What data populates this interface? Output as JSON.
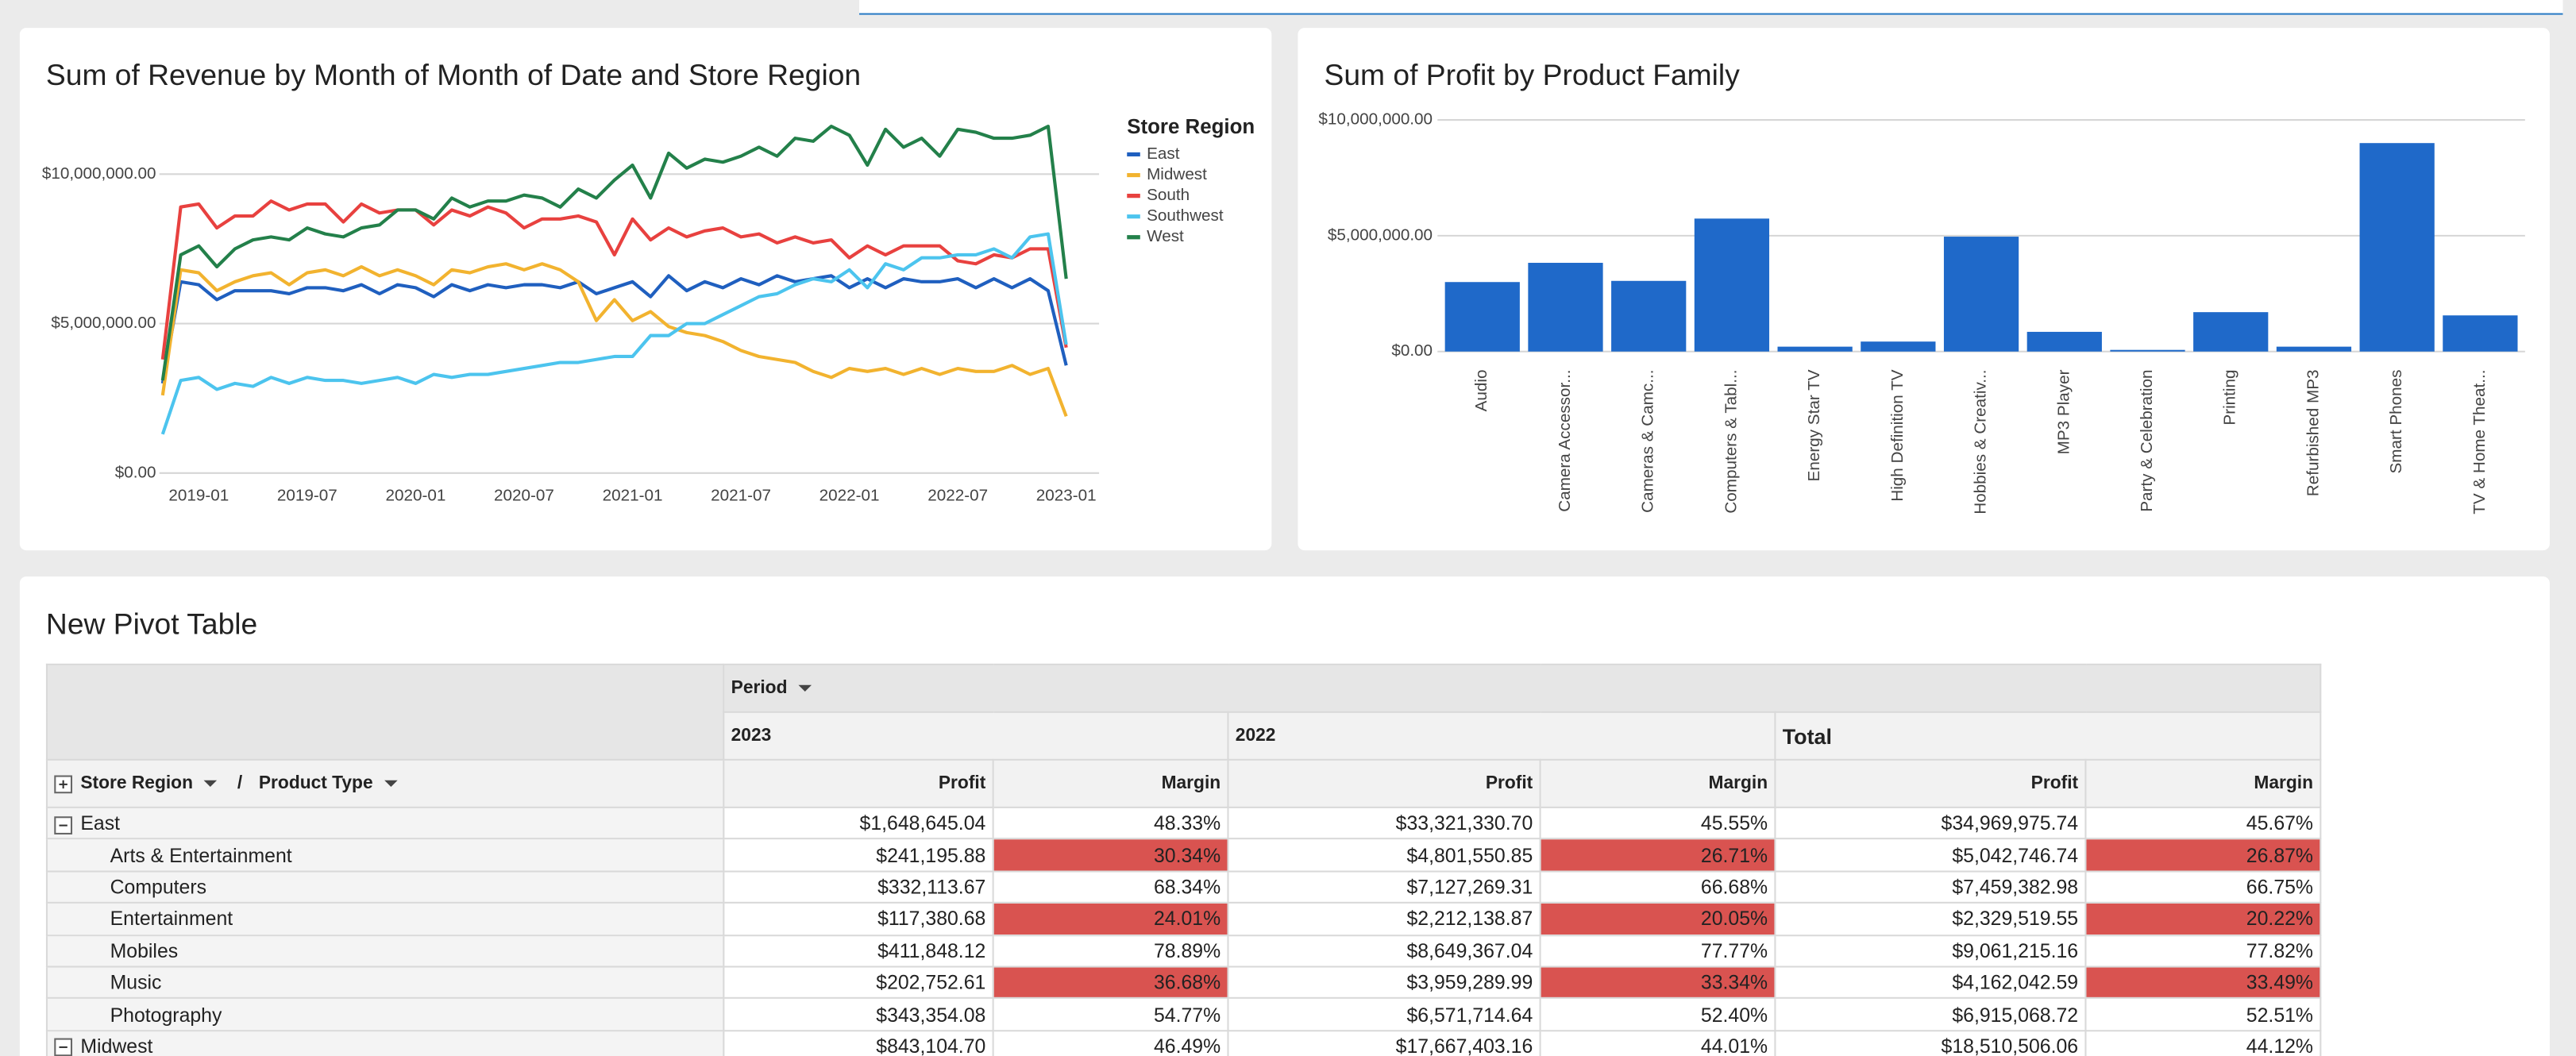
{
  "chart_data": [
    {
      "type": "line",
      "title": "Sum of Revenue by Month of Month of Date and Store Region",
      "x": [
        "2018-11",
        "2018-12",
        "2019-01",
        "2019-02",
        "2019-03",
        "2019-04",
        "2019-05",
        "2019-06",
        "2019-07",
        "2019-08",
        "2019-09",
        "2019-10",
        "2019-11",
        "2019-12",
        "2020-01",
        "2020-02",
        "2020-03",
        "2020-04",
        "2020-05",
        "2020-06",
        "2020-07",
        "2020-08",
        "2020-09",
        "2020-10",
        "2020-11",
        "2020-12",
        "2021-01",
        "2021-02",
        "2021-03",
        "2021-04",
        "2021-05",
        "2021-06",
        "2021-07",
        "2021-08",
        "2021-09",
        "2021-10",
        "2021-11",
        "2021-12",
        "2022-01",
        "2022-02",
        "2022-03",
        "2022-04",
        "2022-05",
        "2022-06",
        "2022-07",
        "2022-08",
        "2022-09",
        "2022-10",
        "2022-11",
        "2022-12",
        "2023-01"
      ],
      "xlim": [
        "2018-11",
        "2023-01"
      ],
      "xticks": [
        "2019-01",
        "2019-07",
        "2020-01",
        "2020-07",
        "2021-01",
        "2021-07",
        "2022-01",
        "2022-07",
        "2023-01"
      ],
      "ylim": [
        0,
        12000000
      ],
      "yticks": [
        {
          "value": 0,
          "label": "$0.00"
        },
        {
          "value": 5000000,
          "label": "$5,000,000.00"
        },
        {
          "value": 10000000,
          "label": "$10,000,000.00"
        }
      ],
      "grid": true,
      "legend": "right",
      "legend_title": "Store Region",
      "series": [
        {
          "name": "East",
          "color": "#1f5fbf",
          "values": [
            3000000,
            6400000,
            6300000,
            5800000,
            6100000,
            6100000,
            6100000,
            6000000,
            6200000,
            6200000,
            6100000,
            6300000,
            6000000,
            6300000,
            6200000,
            5900000,
            6300000,
            6100000,
            6300000,
            6200000,
            6300000,
            6300000,
            6200000,
            6400000,
            6000000,
            6200000,
            6400000,
            5900000,
            6600000,
            6100000,
            6400000,
            6200000,
            6500000,
            6300000,
            6600000,
            6400000,
            6500000,
            6600000,
            6200000,
            6500000,
            6200000,
            6500000,
            6400000,
            6400000,
            6500000,
            6200000,
            6500000,
            6200000,
            6500000,
            6100000,
            3600000
          ]
        },
        {
          "name": "Midwest",
          "color": "#f2b32f",
          "values": [
            2600000,
            6800000,
            6700000,
            6100000,
            6400000,
            6600000,
            6700000,
            6300000,
            6700000,
            6800000,
            6600000,
            6900000,
            6600000,
            6800000,
            6600000,
            6300000,
            6800000,
            6700000,
            6900000,
            7000000,
            6800000,
            7000000,
            6800000,
            6400000,
            5100000,
            5800000,
            5100000,
            5400000,
            4900000,
            4700000,
            4600000,
            4400000,
            4100000,
            3900000,
            3800000,
            3700000,
            3400000,
            3200000,
            3500000,
            3400000,
            3500000,
            3300000,
            3500000,
            3300000,
            3500000,
            3400000,
            3400000,
            3600000,
            3300000,
            3500000,
            1900000
          ]
        },
        {
          "name": "South",
          "color": "#e8413f",
          "values": [
            3800000,
            8900000,
            9000000,
            8200000,
            8600000,
            8600000,
            9100000,
            8800000,
            9000000,
            9000000,
            8400000,
            9000000,
            8700000,
            8800000,
            8800000,
            8300000,
            8800000,
            8600000,
            8900000,
            8700000,
            8200000,
            8500000,
            8500000,
            8600000,
            8400000,
            7300000,
            8500000,
            7800000,
            8200000,
            7900000,
            8100000,
            8200000,
            7900000,
            8000000,
            7700000,
            7900000,
            7700000,
            7800000,
            7200000,
            7600000,
            7300000,
            7600000,
            7600000,
            7600000,
            7100000,
            7000000,
            7300000,
            7200000,
            7500000,
            7500000,
            4200000
          ]
        },
        {
          "name": "Southwest",
          "color": "#4cc4ee",
          "values": [
            1300000,
            3100000,
            3200000,
            2800000,
            3000000,
            2900000,
            3200000,
            3000000,
            3200000,
            3100000,
            3100000,
            3000000,
            3100000,
            3200000,
            3000000,
            3300000,
            3200000,
            3300000,
            3300000,
            3400000,
            3500000,
            3600000,
            3700000,
            3700000,
            3800000,
            3900000,
            3900000,
            4600000,
            4600000,
            5000000,
            5000000,
            5300000,
            5600000,
            5900000,
            6000000,
            6300000,
            6500000,
            6400000,
            6800000,
            6200000,
            7000000,
            6800000,
            7200000,
            7200000,
            7300000,
            7300000,
            7500000,
            7200000,
            7900000,
            8000000,
            4300000
          ]
        },
        {
          "name": "West",
          "color": "#23804a",
          "values": [
            3100000,
            7300000,
            7600000,
            6900000,
            7500000,
            7800000,
            7900000,
            7800000,
            8200000,
            8000000,
            7900000,
            8200000,
            8300000,
            8800000,
            8800000,
            8500000,
            9200000,
            8900000,
            9100000,
            9100000,
            9300000,
            9200000,
            8900000,
            9500000,
            9200000,
            9800000,
            10300000,
            9200000,
            10700000,
            10200000,
            10500000,
            10400000,
            10600000,
            10900000,
            10600000,
            11200000,
            11100000,
            11600000,
            11300000,
            10300000,
            11500000,
            10900000,
            11200000,
            10600000,
            11500000,
            11400000,
            11200000,
            11200000,
            11300000,
            11600000,
            6500000
          ]
        }
      ]
    },
    {
      "type": "bar",
      "title": "Sum of Profit by Product Family",
      "categories": [
        "Audio",
        "Camera Accessor...",
        "Cameras & Camc...",
        "Computers & Tabl...",
        "Energy Star TV",
        "High Definition TV",
        "Hobbies & Creativ...",
        "MP3 Player",
        "Party & Celebration",
        "Printing",
        "Refurbished MP3",
        "Smart Phones",
        "TV & Home Theat..."
      ],
      "values": [
        3000000,
        3830000,
        3050000,
        5740000,
        210000,
        430000,
        4960000,
        850000,
        70000,
        1700000,
        210000,
        9000000,
        1560000
      ],
      "color": "#1f69c9",
      "ylim": [
        0,
        10000000
      ],
      "yticks": [
        {
          "value": 0,
          "label": "$0.00"
        },
        {
          "value": 5000000,
          "label": "$5,000,000.00"
        },
        {
          "value": 10000000,
          "label": "$10,000,000.00"
        }
      ],
      "grid": true
    }
  ],
  "pivot_table": {
    "title": "New Pivot Table",
    "column_field": "Period",
    "row_fields": [
      "Store Region",
      "Product Type"
    ],
    "separator": "/",
    "periods": [
      "2023",
      "2022",
      "Total"
    ],
    "measures": [
      "Profit",
      "Margin"
    ],
    "highlight_color": "#d95350",
    "rows": [
      {
        "label": "East",
        "level": 0,
        "highlight": false,
        "cells": [
          "$1,648,645.04",
          "48.33%",
          "$33,321,330.70",
          "45.55%",
          "$34,969,975.74",
          "45.67%"
        ]
      },
      {
        "label": "Arts & Entertainment",
        "level": 1,
        "highlight": true,
        "cells": [
          "$241,195.88",
          "30.34%",
          "$4,801,550.85",
          "26.71%",
          "$5,042,746.74",
          "26.87%"
        ]
      },
      {
        "label": "Computers",
        "level": 1,
        "highlight": false,
        "cells": [
          "$332,113.67",
          "68.34%",
          "$7,127,269.31",
          "66.68%",
          "$7,459,382.98",
          "66.75%"
        ]
      },
      {
        "label": "Entertainment",
        "level": 1,
        "highlight": true,
        "cells": [
          "$117,380.68",
          "24.01%",
          "$2,212,138.87",
          "20.05%",
          "$2,329,519.55",
          "20.22%"
        ]
      },
      {
        "label": "Mobiles",
        "level": 1,
        "highlight": false,
        "cells": [
          "$411,848.12",
          "78.89%",
          "$8,649,367.04",
          "77.77%",
          "$9,061,215.16",
          "77.82%"
        ]
      },
      {
        "label": "Music",
        "level": 1,
        "highlight": true,
        "cells": [
          "$202,752.61",
          "36.68%",
          "$3,959,289.99",
          "33.34%",
          "$4,162,042.59",
          "33.49%"
        ]
      },
      {
        "label": "Photography",
        "level": 1,
        "highlight": false,
        "cells": [
          "$343,354.08",
          "54.77%",
          "$6,571,714.64",
          "52.40%",
          "$6,915,068.72",
          "52.51%"
        ]
      },
      {
        "label": "Midwest",
        "level": 0,
        "highlight": false,
        "cells": [
          "$843,104.70",
          "46.49%",
          "$17,667,403.16",
          "44.01%",
          "$18,510,506.06",
          "44.12%"
        ]
      }
    ]
  }
}
